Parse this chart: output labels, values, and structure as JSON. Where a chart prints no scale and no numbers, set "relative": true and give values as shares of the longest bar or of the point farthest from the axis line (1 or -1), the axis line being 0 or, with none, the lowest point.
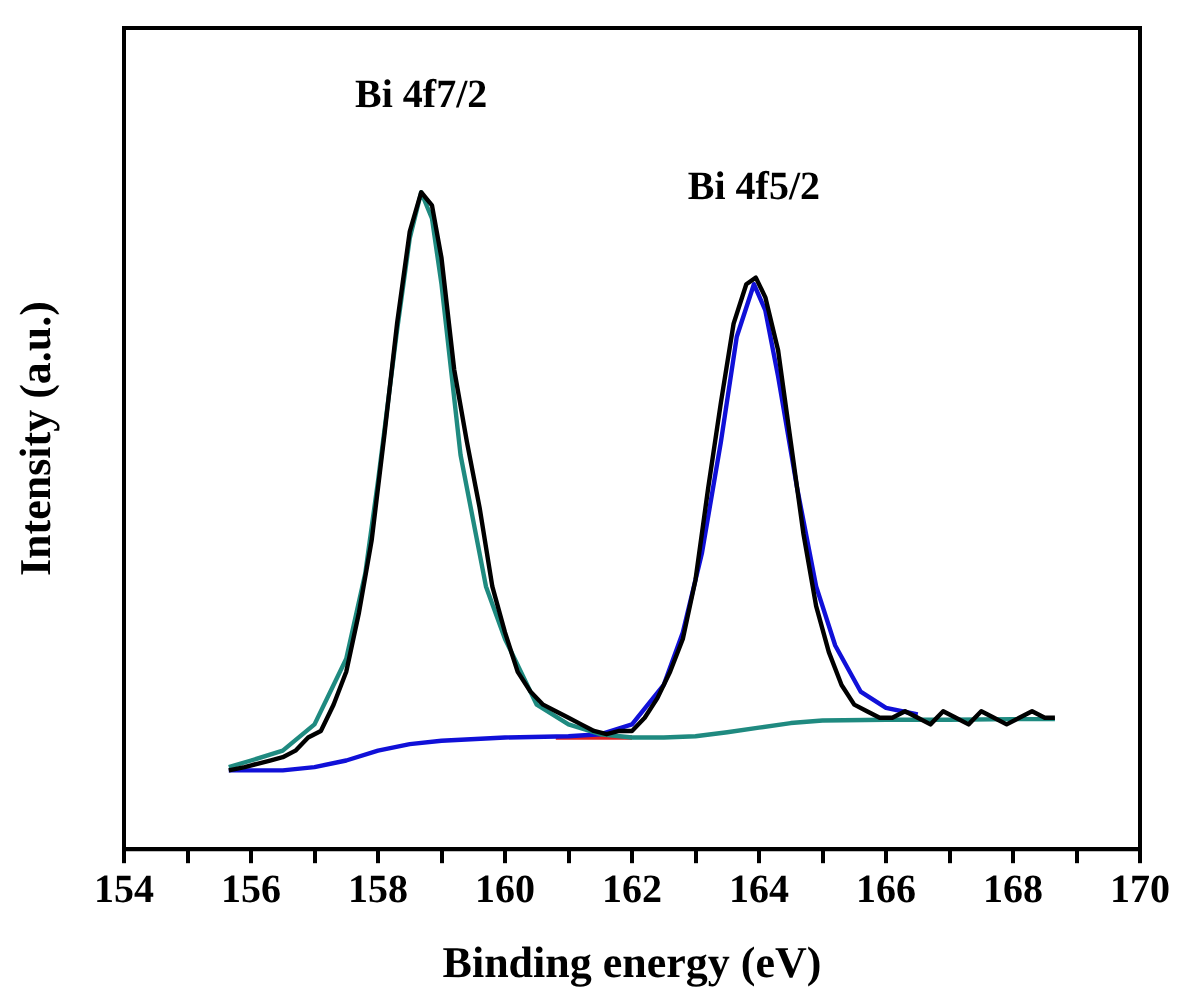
{
  "chart_data": {
    "type": "line",
    "relative": true,
    "xlabel": "Binding energy (eV)",
    "ylabel": "Intensity (a.u.)",
    "tick_labels": "x",
    "grid": false,
    "legend": false,
    "marker": "none",
    "line_style": "solid",
    "xlim": [
      154,
      170
    ],
    "xticks": [
      154,
      {
        "value": 155,
        "label": null
      },
      156,
      {
        "value": 157,
        "label": null
      },
      158,
      {
        "value": 159,
        "label": null
      },
      160,
      {
        "value": 161,
        "label": null
      },
      162,
      {
        "value": 163,
        "label": null
      },
      164,
      {
        "value": 165,
        "label": null
      },
      166,
      {
        "value": 167,
        "label": null
      },
      168,
      {
        "value": 169,
        "label": null
      },
      170
    ],
    "annotations": [
      {
        "text": "Bi 4f7/2",
        "x": 158.68,
        "y": 1.0
      },
      {
        "text": "Bi 4f5/2",
        "x": 163.92,
        "y": 0.86
      }
    ],
    "series": [
      {
        "color": "#000000",
        "x": [
          155.65,
          155.9,
          156.1,
          156.3,
          156.5,
          156.7,
          156.9,
          157.1,
          157.3,
          157.5,
          157.7,
          157.9,
          158.1,
          158.3,
          158.5,
          158.68,
          158.85,
          159.0,
          159.2,
          159.4,
          159.6,
          159.8,
          160.0,
          160.2,
          160.4,
          160.6,
          160.8,
          161.0,
          161.2,
          161.4,
          161.6,
          161.8,
          162.0,
          162.2,
          162.4,
          162.6,
          162.8,
          163.0,
          163.2,
          163.4,
          163.6,
          163.8,
          163.95,
          164.1,
          164.3,
          164.5,
          164.7,
          164.9,
          165.1,
          165.3,
          165.5,
          165.7,
          165.9,
          166.1,
          166.3,
          166.5,
          166.7,
          166.9,
          167.1,
          167.3,
          167.5,
          167.7,
          167.9,
          168.1,
          168.3,
          168.5,
          168.66
        ],
        "values": [
          0.12,
          0.125,
          0.13,
          0.135,
          0.14,
          0.15,
          0.17,
          0.18,
          0.22,
          0.27,
          0.36,
          0.47,
          0.63,
          0.8,
          0.94,
          1.0,
          0.98,
          0.9,
          0.73,
          0.62,
          0.52,
          0.4,
          0.33,
          0.27,
          0.24,
          0.22,
          0.21,
          0.2,
          0.19,
          0.18,
          0.175,
          0.18,
          0.18,
          0.2,
          0.23,
          0.27,
          0.32,
          0.41,
          0.55,
          0.68,
          0.8,
          0.86,
          0.87,
          0.84,
          0.76,
          0.62,
          0.48,
          0.37,
          0.3,
          0.25,
          0.22,
          0.21,
          0.2,
          0.2,
          0.21,
          0.2,
          0.19,
          0.21,
          0.2,
          0.19,
          0.21,
          0.2,
          0.19,
          0.2,
          0.21,
          0.2,
          0.2
        ]
      },
      {
        "color": "#1f8a80",
        "x": [
          155.65,
          156.0,
          156.5,
          157.0,
          157.5,
          157.8,
          158.0,
          158.3,
          158.5,
          158.68,
          158.85,
          159.0,
          159.3,
          159.7,
          160.0,
          160.5,
          161.0,
          161.5,
          162.0,
          162.5,
          163.0,
          163.5,
          164.0,
          164.5,
          165.0,
          166.0,
          167.0,
          168.0,
          168.66
        ],
        "values": [
          0.125,
          0.135,
          0.15,
          0.19,
          0.29,
          0.42,
          0.56,
          0.79,
          0.93,
          1.0,
          0.96,
          0.86,
          0.6,
          0.4,
          0.32,
          0.22,
          0.19,
          0.175,
          0.17,
          0.17,
          0.172,
          0.178,
          0.185,
          0.192,
          0.196,
          0.197,
          0.197,
          0.198,
          0.198
        ]
      },
      {
        "color": "#1010d8",
        "x": [
          155.65,
          156.5,
          157.0,
          157.5,
          158.0,
          158.5,
          159.0,
          160.0,
          161.0,
          161.5,
          162.0,
          162.5,
          162.8,
          163.1,
          163.4,
          163.65,
          163.92,
          164.1,
          164.3,
          164.6,
          164.9,
          165.2,
          165.6,
          166.0,
          166.5
        ],
        "values": [
          0.12,
          0.12,
          0.125,
          0.135,
          0.15,
          0.16,
          0.165,
          0.17,
          0.172,
          0.175,
          0.19,
          0.25,
          0.33,
          0.45,
          0.62,
          0.78,
          0.86,
          0.82,
          0.72,
          0.55,
          0.4,
          0.31,
          0.24,
          0.215,
          0.205
        ]
      },
      {
        "color": "#e02020",
        "x": [
          160.8,
          161.2,
          161.6,
          162.0
        ],
        "values": [
          0.17,
          0.17,
          0.17,
          0.17
        ]
      }
    ]
  }
}
